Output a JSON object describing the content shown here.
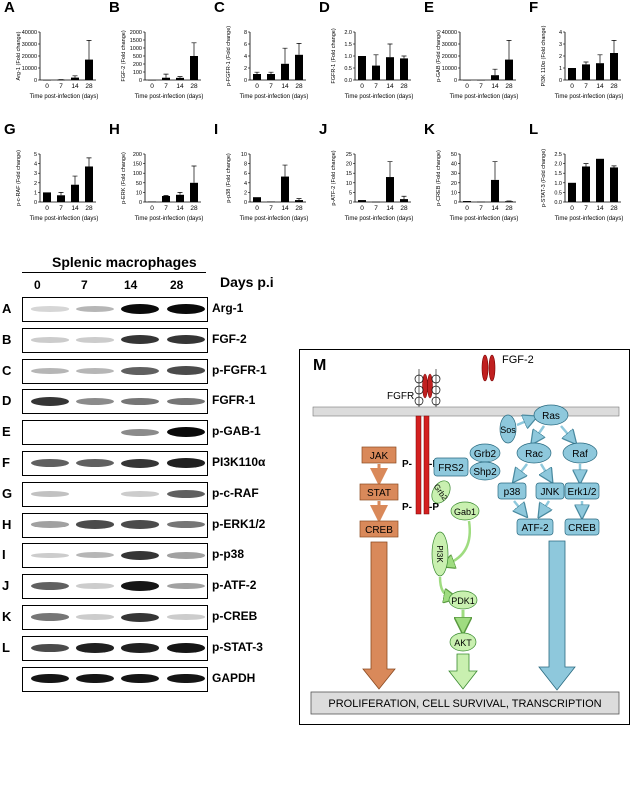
{
  "chart_data": [
    {
      "panel": "A",
      "type": "bar",
      "categories": [
        "0",
        "7",
        "14",
        "28"
      ],
      "values": [
        0,
        200,
        2000,
        17000
      ],
      "errors": [
        0,
        100,
        1500,
        16000
      ],
      "ylabel": "Arg-1 (Fold change)",
      "xlabel": "Time post-infection (days)",
      "yticks": [
        "0",
        "10000",
        "20000",
        "30000",
        "40000"
      ],
      "ylim": [
        0,
        40000
      ]
    },
    {
      "panel": "B",
      "type": "bar",
      "categories": [
        "0",
        "7",
        "14",
        "28"
      ],
      "values": [
        2,
        95,
        90,
        1000
      ],
      "errors": [
        0,
        150,
        50,
        550
      ],
      "ylabel": "FGF-2 (Fold change)",
      "xlabel": "Time post-infection (days)",
      "yticks": [
        "0",
        "100",
        "200",
        "500",
        "1000",
        "1500",
        "2000"
      ],
      "ylim": [
        0,
        2000
      ]
    },
    {
      "panel": "C",
      "type": "bar",
      "categories": [
        "0",
        "7",
        "14",
        "28"
      ],
      "values": [
        1.0,
        1.0,
        2.7,
        4.2
      ],
      "errors": [
        0.3,
        0.3,
        2.6,
        1.9
      ],
      "ylabel": "p-FGFR-1 (Fold change)",
      "xlabel": "Time post-infection (days)",
      "yticks": [
        "0",
        "2",
        "4",
        "6",
        "8"
      ],
      "ylim": [
        0,
        8
      ]
    },
    {
      "panel": "D",
      "type": "bar",
      "categories": [
        "0",
        "7",
        "14",
        "28"
      ],
      "values": [
        1.0,
        0.6,
        0.95,
        0.9
      ],
      "errors": [
        0,
        0.45,
        0.55,
        0.1
      ],
      "ylabel": "FGFR-1 (Fold change)",
      "xlabel": "Time post-infection (days)",
      "yticks": [
        "0.0",
        "0.5",
        "1.0",
        "1.5",
        "2.0"
      ],
      "ylim": [
        0,
        2.0
      ]
    },
    {
      "panel": "E",
      "type": "bar",
      "categories": [
        "0",
        "7",
        "14",
        "28"
      ],
      "values": [
        0,
        0,
        4000,
        17000
      ],
      "errors": [
        0,
        0,
        5000,
        16000
      ],
      "ylabel": "p-GAB (Fold change)",
      "xlabel": "Time post-infection (days)",
      "yticks": [
        "0",
        "10000",
        "20000",
        "30000",
        "40000"
      ],
      "ylim": [
        0,
        40000
      ]
    },
    {
      "panel": "F",
      "type": "bar",
      "categories": [
        "0",
        "7",
        "14",
        "28"
      ],
      "values": [
        1.0,
        1.3,
        1.4,
        2.25
      ],
      "errors": [
        0,
        0.2,
        0.7,
        1.05
      ],
      "ylabel": "PI3K 110α (Fold change)",
      "xlabel": "Time post-infection (days)",
      "yticks": [
        "0",
        "1",
        "2",
        "3",
        "4"
      ],
      "ylim": [
        0,
        4
      ]
    },
    {
      "panel": "G",
      "type": "bar",
      "categories": [
        "0",
        "7",
        "14",
        "28"
      ],
      "values": [
        1.0,
        0.7,
        1.8,
        3.7
      ],
      "errors": [
        0,
        0.3,
        0.9,
        0.9
      ],
      "ylabel": "p-c-RAF (Fold change)",
      "xlabel": "Time post-infection (days)",
      "yticks": [
        "0",
        "1",
        "2",
        "3",
        "4",
        "5"
      ],
      "ylim": [
        0,
        5
      ]
    },
    {
      "panel": "H",
      "type": "bar",
      "categories": [
        "0",
        "7",
        "14",
        "28"
      ],
      "values": [
        2,
        25,
        30,
        80
      ],
      "errors": [
        0,
        2,
        10,
        70
      ],
      "ylabel": "p-ERK (Fold change)",
      "xlabel": "Time post-infection (days)",
      "yticks": [
        "0",
        "10",
        "50",
        "100",
        "150",
        "200"
      ],
      "ylim": [
        0,
        200
      ]
    },
    {
      "panel": "I",
      "type": "bar",
      "categories": [
        "0",
        "7",
        "14",
        "28"
      ],
      "values": [
        1.0,
        0.1,
        5.3,
        0.4
      ],
      "errors": [
        0,
        0,
        2.4,
        0.3
      ],
      "ylabel": "p-p38 (Fold change)",
      "xlabel": "Time post-infection (days)",
      "yticks": [
        "0",
        "2",
        "4",
        "6",
        "8",
        "10"
      ],
      "ylim": [
        0,
        10
      ]
    },
    {
      "panel": "J",
      "type": "bar",
      "categories": [
        "0",
        "7",
        "14",
        "28"
      ],
      "values": [
        1.0,
        0.1,
        13,
        1.5
      ],
      "errors": [
        0,
        0,
        8,
        1.5
      ],
      "ylabel": "p-ATF-2 (Fold change)",
      "xlabel": "Time post-infection (days)",
      "yticks": [
        "0",
        "5",
        "10",
        "15",
        "20",
        "25"
      ],
      "ylim": [
        0,
        25
      ]
    },
    {
      "panel": "K",
      "type": "bar",
      "categories": [
        "0",
        "7",
        "14",
        "28"
      ],
      "values": [
        1.0,
        0.3,
        23,
        0.8
      ],
      "errors": [
        0,
        0,
        19,
        0.3
      ],
      "ylabel": "p-CREB (Fold change)",
      "xlabel": "Time post-infection (days)",
      "yticks": [
        "0",
        "10",
        "20",
        "30",
        "40",
        "50"
      ],
      "ylim": [
        0,
        50
      ]
    },
    {
      "panel": "L",
      "type": "bar",
      "categories": [
        "0",
        "7",
        "14",
        "28"
      ],
      "values": [
        1.0,
        1.85,
        2.25,
        1.8
      ],
      "errors": [
        0,
        0.15,
        0,
        0.08
      ],
      "ylabel": "p-STAT-3 (Fold change)",
      "xlabel": "Time post-infection (days)",
      "yticks": [
        "0.0",
        "0.5",
        "1.0",
        "1.5",
        "2.0",
        "2.5"
      ],
      "ylim": [
        0,
        2.5
      ]
    }
  ],
  "blot": {
    "title": "Splenic macrophages",
    "days_label": "Days p.i",
    "lanes": [
      "0",
      "7",
      "14",
      "28"
    ],
    "rows": [
      {
        "id": "A",
        "protein": "Arg-1",
        "intensities": [
          0.05,
          0.2,
          1.0,
          1.0
        ]
      },
      {
        "id": "B",
        "protein": "FGF-2",
        "intensities": [
          0.1,
          0.1,
          0.8,
          0.8
        ]
      },
      {
        "id": "C",
        "protein": "p-FGFR-1",
        "intensities": [
          0.2,
          0.2,
          0.6,
          0.7
        ]
      },
      {
        "id": "D",
        "protein": "FGFR-1",
        "intensities": [
          0.8,
          0.4,
          0.5,
          0.5
        ]
      },
      {
        "id": "E",
        "protein": "p-GAB-1",
        "intensities": [
          0.0,
          0.0,
          0.4,
          1.0
        ]
      },
      {
        "id": "F",
        "protein": "PI3K110α",
        "intensities": [
          0.6,
          0.6,
          0.8,
          0.9
        ]
      },
      {
        "id": "G",
        "protein": "p-c-RAF",
        "intensities": [
          0.15,
          0.0,
          0.1,
          0.6
        ]
      },
      {
        "id": "H",
        "protein": "p-ERK1/2",
        "intensities": [
          0.3,
          0.7,
          0.7,
          0.5
        ]
      },
      {
        "id": "I",
        "protein": "p-p38",
        "intensities": [
          0.1,
          0.2,
          0.8,
          0.3
        ]
      },
      {
        "id": "J",
        "protein": "p-ATF-2",
        "intensities": [
          0.6,
          0.1,
          0.95,
          0.3
        ]
      },
      {
        "id": "K",
        "protein": "p-CREB",
        "intensities": [
          0.5,
          0.1,
          0.8,
          0.1
        ]
      },
      {
        "id": "L",
        "protein": "p-STAT-3",
        "intensities": [
          0.7,
          0.9,
          0.9,
          0.95
        ]
      },
      {
        "id": "",
        "protein": "GAPDH",
        "intensities": [
          0.95,
          0.95,
          0.95,
          0.95
        ]
      }
    ]
  },
  "diagram": {
    "label": "M",
    "ligand": "FGF-2",
    "receptor": "FGFR",
    "nodes": {
      "jak": "JAK",
      "stat": "STAT",
      "creb_left": "CREB",
      "frs2": "FRS2",
      "grb2_top": "Grb2",
      "shp2": "Shp2",
      "sos": "Sos",
      "grb2_side": "Grb2",
      "gab1": "Gab1",
      "pi3k": "PI3K",
      "pdk1": "PDK1",
      "akt": "AKT",
      "ras": "Ras",
      "rac": "Rac",
      "raf": "Raf",
      "p38": "p38",
      "jnk": "JNK",
      "erk": "Erk1/2",
      "atf2": "ATF-2",
      "creb_right": "CREB",
      "p1": "P-",
      "p2": "-P",
      "p3": "P-",
      "p4": "-P"
    },
    "outcome": "PROLIFERATION, CELL SURVIVAL, TRANSCRIPTION",
    "colors": {
      "orange": "#d9895a",
      "green": "#c9f0b0",
      "blue": "#8ec8dc",
      "red": "#d32020"
    }
  }
}
